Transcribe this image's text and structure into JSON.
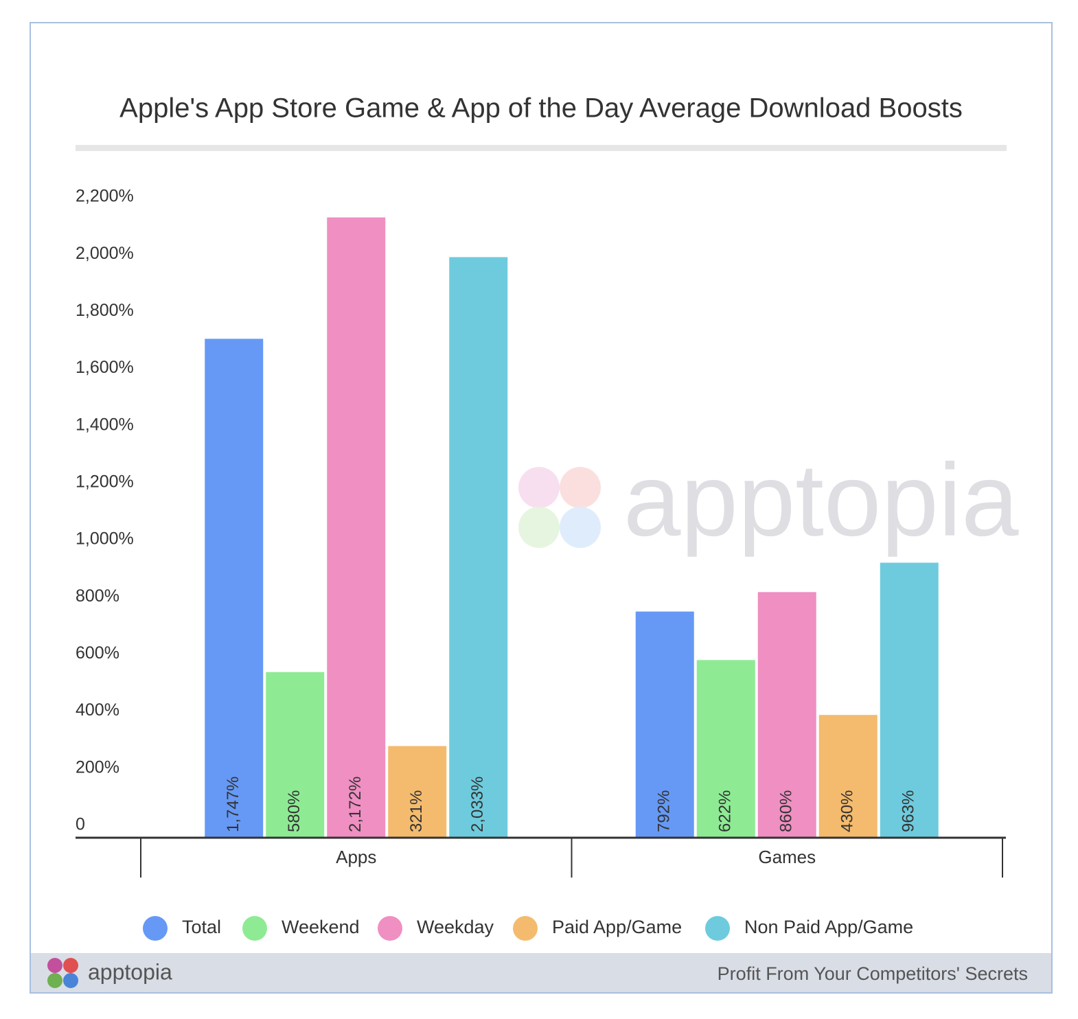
{
  "chart_data": {
    "type": "bar",
    "title": "Apple's App Store Game & App of the Day Average Download Boosts",
    "categories": [
      "Apps",
      "Games"
    ],
    "series": [
      {
        "name": "Total",
        "color": "#6699f5",
        "values": [
          1747,
          792
        ],
        "value_labels": [
          "1,747%",
          "792%"
        ]
      },
      {
        "name": "Weekend",
        "color": "#8eeb94",
        "values": [
          580,
          622
        ],
        "value_labels": [
          "580%",
          "622%"
        ]
      },
      {
        "name": "Weekday",
        "color": "#ef8fc2",
        "values": [
          2172,
          860
        ],
        "value_labels": [
          "2,172%",
          "860%"
        ]
      },
      {
        "name": "Paid App/Game",
        "color": "#f4bb6e",
        "values": [
          321,
          430
        ],
        "value_labels": [
          "321%",
          "430%"
        ]
      },
      {
        "name": "Non Paid App/Game",
        "color": "#6ecbdd",
        "values": [
          2033,
          963
        ],
        "value_labels": [
          "2,033%",
          "963%"
        ]
      }
    ],
    "ylim": [
      0,
      2200
    ],
    "yticks": [
      0,
      {
        "value": 200,
        "label": "200%"
      },
      {
        "value": 400,
        "label": "400%"
      },
      {
        "value": 600,
        "label": "600%"
      },
      {
        "value": 800,
        "label": "800%"
      },
      {
        "value": 1000,
        "label": "1,000%"
      },
      {
        "value": 1200,
        "label": "1,200%"
      },
      {
        "value": 1400,
        "label": "1,400%"
      },
      {
        "value": 1600,
        "label": "1,600%"
      },
      {
        "value": 1800,
        "label": "1,800%"
      },
      {
        "value": 2000,
        "label": "2,000%"
      },
      {
        "value": 2200,
        "label": "2,200%"
      }
    ],
    "legend": "bottom",
    "watermark": "apptopia",
    "footer_brand": "apptopia",
    "footer_tagline": "Profit From Your Competitors' Secrets"
  }
}
